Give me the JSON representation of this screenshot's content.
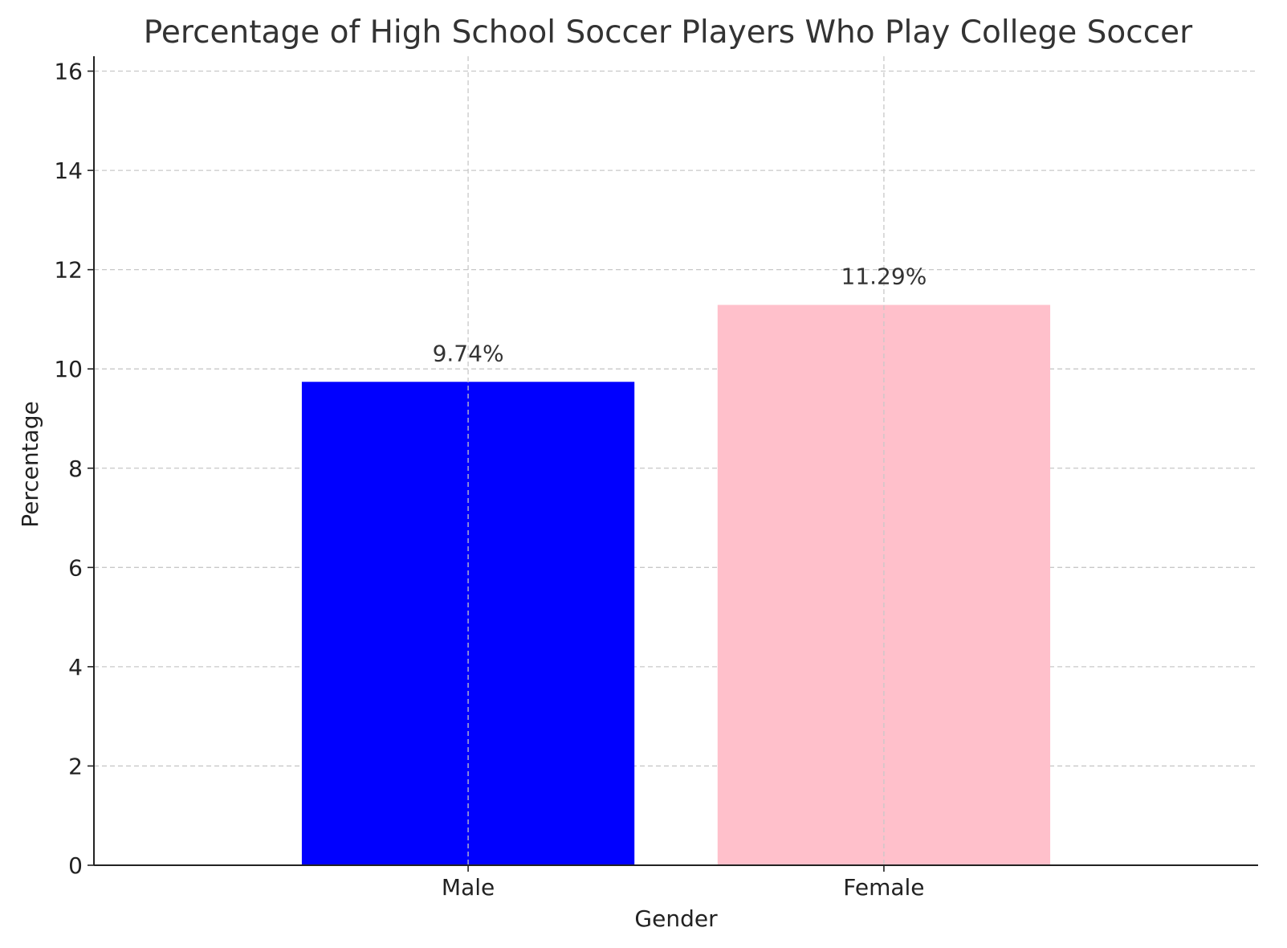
{
  "chart_data": {
    "type": "bar",
    "title": "Percentage of High School Soccer Players Who Play College Soccer",
    "xlabel": "Gender",
    "ylabel": "Percentage",
    "categories": [
      "Male",
      "Female"
    ],
    "values": [
      9.74,
      11.29
    ],
    "data_labels": [
      "9.74%",
      "11.29%"
    ],
    "colors": [
      "#0000ff",
      "#ffc0cb"
    ],
    "ylim": [
      0,
      16.3
    ],
    "yticks": [
      0,
      2,
      4,
      6,
      8,
      10,
      12,
      14,
      16
    ],
    "grid": true,
    "legend": "none"
  }
}
